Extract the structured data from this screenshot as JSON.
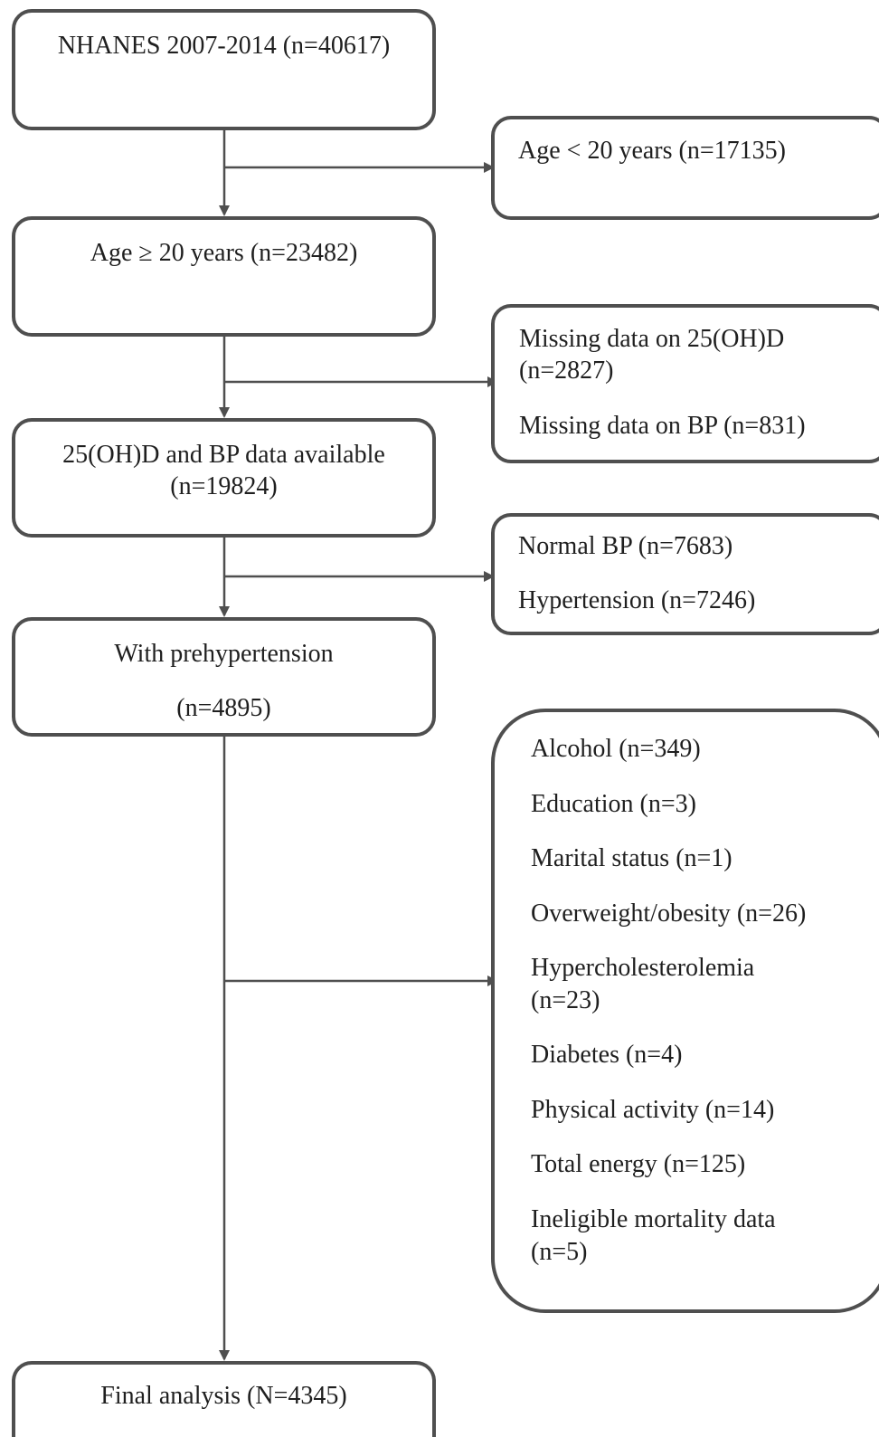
{
  "main_flow": {
    "nhanes": "NHANES 2007-2014 (n=40617)",
    "age_ge_20": "Age ≥ 20 years (n=23482)",
    "available_line1": "25(OH)D and BP data available",
    "available_line2": "(n=19824)",
    "prehypertension_line1": "With prehypertension",
    "prehypertension_line2": "(n=4895)",
    "final": "Final analysis (N=4345)"
  },
  "exclusions": {
    "age_lt_20": "Age < 20 years (n=17135)",
    "missing_25ohd_line1": "Missing data on 25(OH)D",
    "missing_25ohd_line2": "(n=2827)",
    "missing_bp": "Missing data on BP (n=831)",
    "normal_bp": "Normal BP (n=7683)",
    "hypertension": "Hypertension (n=7246)",
    "covariates": {
      "alcohol": "Alcohol (n=349)",
      "education": "Education (n=3)",
      "marital": "Marital status (n=1)",
      "overweight": "Overweight/obesity (n=26)",
      "hyperchol_line1": "Hypercholesterolemia",
      "hyperchol_line2": "(n=23)",
      "diabetes": "Diabetes (n=4)",
      "physical": "Physical activity (n=14)",
      "energy": "Total energy (n=125)",
      "mortality_line1": "Ineligible mortality data",
      "mortality_line2": "(n=5)"
    }
  },
  "colors": {
    "stroke": "#4f4f4f",
    "text": "#1f1f1f",
    "background": "#ffffff"
  }
}
